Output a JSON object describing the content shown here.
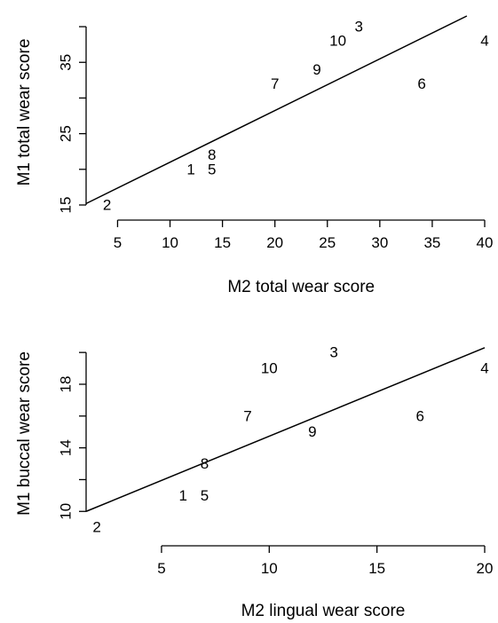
{
  "chart_data": [
    {
      "type": "scatter",
      "title": "",
      "xlabel": "M2 total wear score",
      "ylabel": "M1 total wear score",
      "xlim": [
        2,
        40
      ],
      "ylim": [
        14.5,
        41.5
      ],
      "xticks": [
        5,
        10,
        15,
        20,
        25,
        30,
        35,
        40
      ],
      "yticks": [
        15,
        20,
        25,
        30,
        35,
        40
      ],
      "ytick_labels": [
        "15",
        "",
        "25",
        "",
        "35",
        ""
      ],
      "grid": false,
      "points": [
        {
          "label": "1",
          "x": 12,
          "y": 20
        },
        {
          "label": "2",
          "x": 4,
          "y": 15
        },
        {
          "label": "3",
          "x": 28,
          "y": 40
        },
        {
          "label": "4",
          "x": 40,
          "y": 38
        },
        {
          "label": "5",
          "x": 14,
          "y": 20
        },
        {
          "label": "6",
          "x": 34,
          "y": 32
        },
        {
          "label": "7",
          "x": 20,
          "y": 32
        },
        {
          "label": "8",
          "x": 14,
          "y": 22
        },
        {
          "label": "9",
          "x": 24,
          "y": 34
        },
        {
          "label": "10",
          "x": 26,
          "y": 38
        }
      ],
      "fit_line": [
        [
          2,
          15.2
        ],
        [
          38.3,
          41.5
        ]
      ]
    },
    {
      "type": "scatter",
      "title": "",
      "xlabel": "M2 lingual wear score",
      "ylabel": "M1 buccal wear score",
      "xlim": [
        1.5,
        20
      ],
      "ylim": [
        9.4,
        20.4
      ],
      "xticks": [
        5,
        10,
        15,
        20
      ],
      "yticks": [
        10,
        12,
        14,
        16,
        18,
        20
      ],
      "ytick_labels": [
        "10",
        "",
        "14",
        "",
        "18",
        ""
      ],
      "grid": false,
      "points": [
        {
          "label": "1",
          "x": 6,
          "y": 11
        },
        {
          "label": "2",
          "x": 2,
          "y": 9
        },
        {
          "label": "3",
          "x": 13,
          "y": 20
        },
        {
          "label": "4",
          "x": 20,
          "y": 19
        },
        {
          "label": "5",
          "x": 7,
          "y": 11
        },
        {
          "label": "6",
          "x": 17,
          "y": 16
        },
        {
          "label": "7",
          "x": 9,
          "y": 16
        },
        {
          "label": "8",
          "x": 7,
          "y": 13
        },
        {
          "label": "9",
          "x": 12,
          "y": 15
        },
        {
          "label": "10",
          "x": 10,
          "y": 19
        }
      ],
      "fit_line": [
        [
          1.5,
          10.0
        ],
        [
          20,
          20.3
        ]
      ]
    }
  ]
}
